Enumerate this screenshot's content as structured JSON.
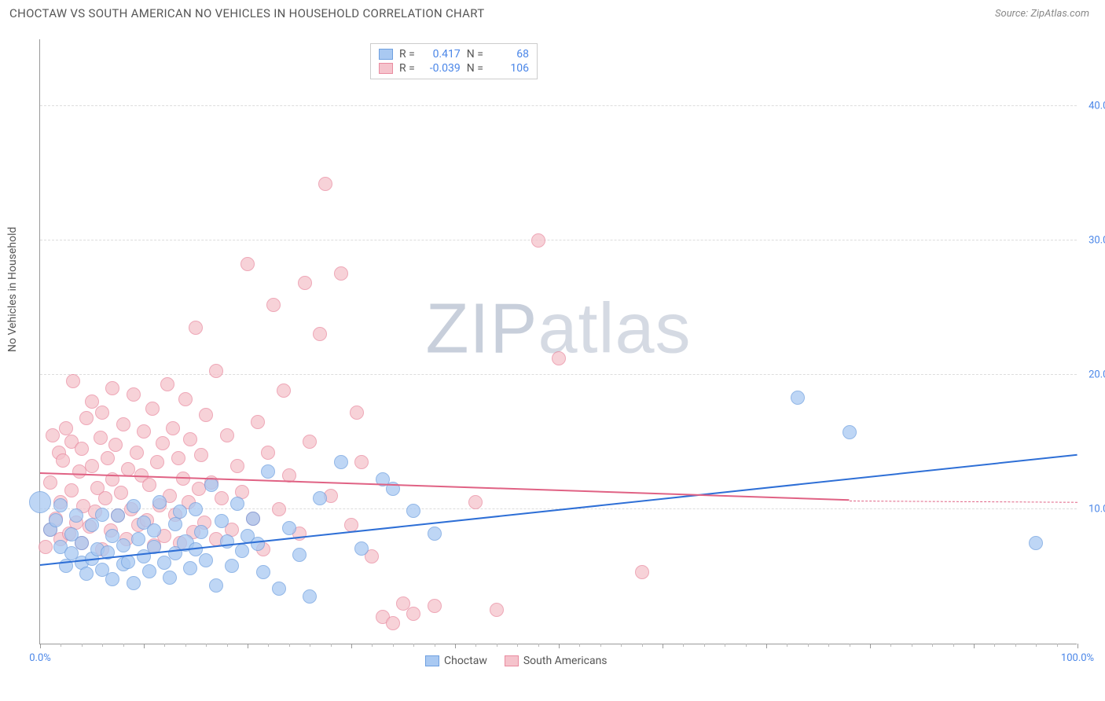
{
  "header": {
    "title": "CHOCTAW VS SOUTH AMERICAN NO VEHICLES IN HOUSEHOLD CORRELATION CHART",
    "source_prefix": "Source: ",
    "source_name": "ZipAtlas.com"
  },
  "watermark": {
    "part1": "ZIP",
    "part2": "atlas"
  },
  "axes": {
    "ylabel": "No Vehicles in Household",
    "xlim": [
      0,
      100
    ],
    "ylim": [
      0,
      45
    ],
    "yticks": [
      {
        "v": 10,
        "label": "10.0%"
      },
      {
        "v": 20,
        "label": "20.0%"
      },
      {
        "v": 30,
        "label": "30.0%"
      },
      {
        "v": 40,
        "label": "40.0%"
      }
    ],
    "yminor_step": 2,
    "xticks_labeled": [
      {
        "v": 0,
        "label": "0.0%"
      },
      {
        "v": 100,
        "label": "100.0%"
      }
    ],
    "xticks_major": [
      0,
      10,
      20,
      30,
      40,
      50,
      60,
      70,
      80,
      90,
      100
    ],
    "xticks_minor_step": 2
  },
  "series": {
    "choctaw": {
      "label": "Choctaw",
      "fill": "#a9c9f2",
      "stroke": "#6fa0e0",
      "line_color": "#2e6fd6",
      "r_value": "0.417",
      "n_value": "68",
      "marker_radius": 9,
      "trend": {
        "x1": 0,
        "y1": 5.8,
        "x2": 100,
        "y2": 14.0
      },
      "points": [
        [
          0,
          10.5,
          14
        ],
        [
          1,
          8.5
        ],
        [
          1.5,
          9.2
        ],
        [
          2,
          7.2
        ],
        [
          2,
          10.3
        ],
        [
          2.5,
          5.8
        ],
        [
          3,
          6.7
        ],
        [
          3,
          8.1
        ],
        [
          3.5,
          9.5
        ],
        [
          4,
          6.0
        ],
        [
          4,
          7.5
        ],
        [
          4.5,
          5.2
        ],
        [
          5,
          6.3
        ],
        [
          5,
          8.8
        ],
        [
          5.5,
          7.0
        ],
        [
          6,
          5.5
        ],
        [
          6,
          9.6
        ],
        [
          6.5,
          6.8
        ],
        [
          7,
          4.8
        ],
        [
          7,
          8.0
        ],
        [
          7.5,
          9.5
        ],
        [
          8,
          5.9
        ],
        [
          8,
          7.3
        ],
        [
          8.5,
          6.1
        ],
        [
          9,
          10.2
        ],
        [
          9,
          4.5
        ],
        [
          9.5,
          7.8
        ],
        [
          10,
          6.5
        ],
        [
          10,
          9.0
        ],
        [
          10.5,
          5.4
        ],
        [
          11,
          7.2
        ],
        [
          11,
          8.4
        ],
        [
          11.5,
          10.5
        ],
        [
          12,
          6.0
        ],
        [
          12.5,
          4.9
        ],
        [
          13,
          8.9
        ],
        [
          13,
          6.7
        ],
        [
          13.5,
          9.8
        ],
        [
          14,
          7.5,
          11
        ],
        [
          14.5,
          5.6
        ],
        [
          15,
          10.0
        ],
        [
          15,
          7.0
        ],
        [
          15.5,
          8.3
        ],
        [
          16,
          6.2
        ],
        [
          16.5,
          11.8
        ],
        [
          17,
          4.3
        ],
        [
          17.5,
          9.1
        ],
        [
          18,
          7.6
        ],
        [
          18.5,
          5.8
        ],
        [
          19,
          10.4
        ],
        [
          19.5,
          6.9
        ],
        [
          20,
          8.0
        ],
        [
          20.5,
          9.3
        ],
        [
          21,
          7.4
        ],
        [
          21.5,
          5.3
        ],
        [
          22,
          12.8
        ],
        [
          23,
          4.1
        ],
        [
          24,
          8.6
        ],
        [
          25,
          6.6
        ],
        [
          26,
          3.5
        ],
        [
          27,
          10.8
        ],
        [
          29,
          13.5
        ],
        [
          31,
          7.1
        ],
        [
          33,
          12.2
        ],
        [
          34,
          11.5
        ],
        [
          36,
          9.9
        ],
        [
          38,
          8.2
        ],
        [
          73,
          18.3
        ],
        [
          78,
          15.7
        ],
        [
          96,
          7.5
        ]
      ]
    },
    "south_american": {
      "label": "South Americans",
      "fill": "#f5c3cc",
      "stroke": "#e98ba0",
      "line_color": "#e06284",
      "r_value": "-0.039",
      "n_value": "106",
      "marker_radius": 9,
      "trend_solid": {
        "x1": 0,
        "y1": 12.6,
        "x2": 78,
        "y2": 10.6
      },
      "trend_dash": {
        "x1": 78,
        "y1": 10.6,
        "x2": 100,
        "y2": 10.5
      },
      "points": [
        [
          0.5,
          7.2
        ],
        [
          1,
          8.5
        ],
        [
          1,
          12.0
        ],
        [
          1.2,
          15.5
        ],
        [
          1.5,
          9.3
        ],
        [
          1.8,
          14.2
        ],
        [
          2,
          7.8
        ],
        [
          2,
          10.5
        ],
        [
          2.2,
          13.6
        ],
        [
          2.5,
          16.0
        ],
        [
          2.8,
          8.2
        ],
        [
          3,
          11.4
        ],
        [
          3,
          15.0
        ],
        [
          3.2,
          19.5
        ],
        [
          3.5,
          9.0
        ],
        [
          3.8,
          12.8
        ],
        [
          4,
          7.5
        ],
        [
          4,
          14.5
        ],
        [
          4.2,
          10.2
        ],
        [
          4.5,
          16.8
        ],
        [
          4.8,
          8.7
        ],
        [
          5,
          13.2
        ],
        [
          5,
          18.0
        ],
        [
          5.3,
          9.8
        ],
        [
          5.5,
          11.6
        ],
        [
          5.8,
          15.3
        ],
        [
          6,
          7.0
        ],
        [
          6,
          17.2
        ],
        [
          6.3,
          10.8
        ],
        [
          6.5,
          13.8
        ],
        [
          6.8,
          8.4
        ],
        [
          7,
          12.2
        ],
        [
          7,
          19.0
        ],
        [
          7.3,
          14.8
        ],
        [
          7.5,
          9.5
        ],
        [
          7.8,
          11.2
        ],
        [
          8,
          16.3
        ],
        [
          8.3,
          7.8
        ],
        [
          8.5,
          13.0
        ],
        [
          8.8,
          10.0
        ],
        [
          9,
          18.5
        ],
        [
          9.3,
          14.2
        ],
        [
          9.5,
          8.8
        ],
        [
          9.8,
          12.5
        ],
        [
          10,
          15.8
        ],
        [
          10.3,
          9.2
        ],
        [
          10.5,
          11.8
        ],
        [
          10.8,
          17.5
        ],
        [
          11,
          7.3
        ],
        [
          11.3,
          13.5
        ],
        [
          11.5,
          10.3
        ],
        [
          11.8,
          14.9
        ],
        [
          12,
          8.0
        ],
        [
          12.3,
          19.3
        ],
        [
          12.5,
          11.0
        ],
        [
          12.8,
          16.0
        ],
        [
          13,
          9.6
        ],
        [
          13.3,
          13.8
        ],
        [
          13.5,
          7.5
        ],
        [
          13.8,
          12.3
        ],
        [
          14,
          18.2
        ],
        [
          14.3,
          10.5
        ],
        [
          14.5,
          15.2
        ],
        [
          14.8,
          8.3
        ],
        [
          15,
          23.5
        ],
        [
          15.3,
          11.5
        ],
        [
          15.5,
          14.0
        ],
        [
          15.8,
          9.0
        ],
        [
          16,
          17.0
        ],
        [
          16.5,
          12.0
        ],
        [
          17,
          7.8
        ],
        [
          17,
          20.3
        ],
        [
          17.5,
          10.8
        ],
        [
          18,
          15.5
        ],
        [
          18.5,
          8.5
        ],
        [
          19,
          13.2
        ],
        [
          19.5,
          11.3
        ],
        [
          20,
          28.2
        ],
        [
          20.5,
          9.3
        ],
        [
          21,
          16.5
        ],
        [
          21.5,
          7.0
        ],
        [
          22,
          14.2
        ],
        [
          22.5,
          25.2
        ],
        [
          23,
          10.0
        ],
        [
          23.5,
          18.8
        ],
        [
          24,
          12.5
        ],
        [
          25,
          8.2
        ],
        [
          25.5,
          26.8
        ],
        [
          26,
          15.0
        ],
        [
          27,
          23.0
        ],
        [
          27.5,
          34.2
        ],
        [
          28,
          11.0
        ],
        [
          29,
          27.5
        ],
        [
          30,
          8.8
        ],
        [
          30.5,
          17.2
        ],
        [
          31,
          13.5
        ],
        [
          32,
          6.5
        ],
        [
          33,
          2.0
        ],
        [
          34,
          1.5
        ],
        [
          35,
          3.0
        ],
        [
          36,
          2.2
        ],
        [
          38,
          2.8
        ],
        [
          42,
          10.5
        ],
        [
          44,
          2.5
        ],
        [
          48,
          30.0
        ],
        [
          50,
          21.2
        ],
        [
          58,
          5.3
        ]
      ]
    }
  },
  "stats_box": {
    "r_label": "R =",
    "n_label": "N ="
  },
  "colors": {
    "background": "#ffffff",
    "grid": "#dddddd",
    "axis": "#999999",
    "tick_text": "#4a86e8",
    "title_text": "#555555"
  }
}
